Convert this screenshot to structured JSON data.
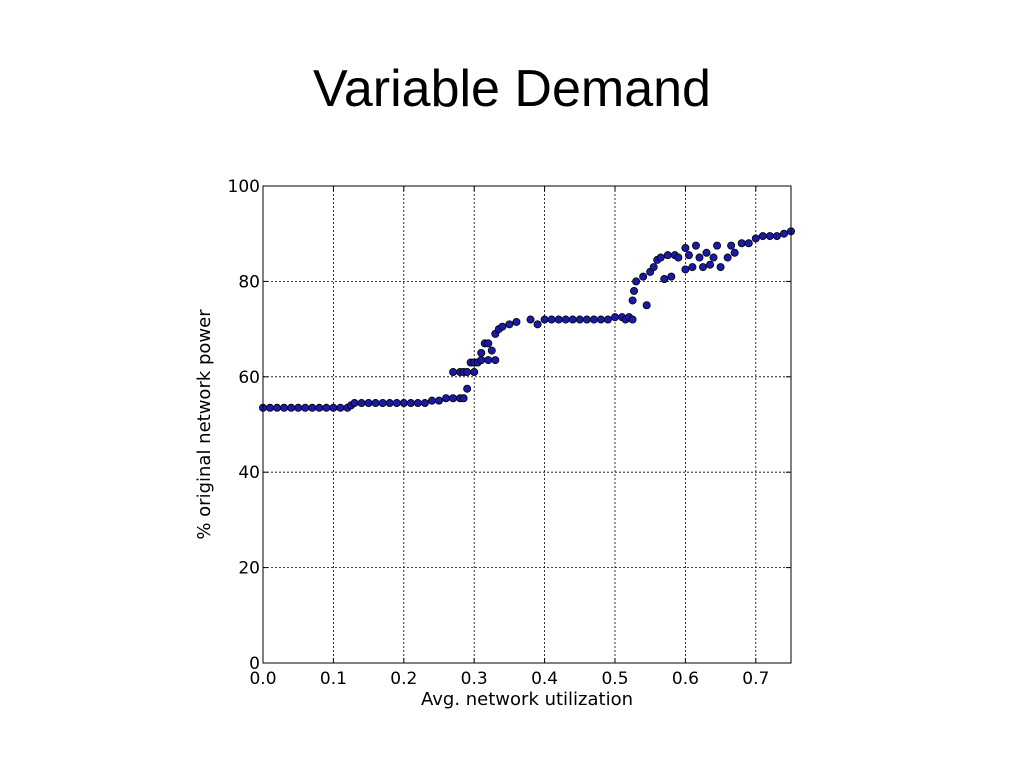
{
  "slide": {
    "title": "Variable Demand"
  },
  "chart_data": {
    "type": "scatter",
    "title": "",
    "xlabel": "Avg. network utilization",
    "ylabel": "% original network power",
    "xlim": [
      0.0,
      0.75
    ],
    "ylim": [
      0,
      100
    ],
    "xticks": [
      0.0,
      0.1,
      0.2,
      0.3,
      0.4,
      0.5,
      0.6,
      0.7
    ],
    "xtick_labels": [
      "0.0",
      "0.1",
      "0.2",
      "0.3",
      "0.4",
      "0.5",
      "0.6",
      "0.7"
    ],
    "yticks": [
      0,
      20,
      40,
      60,
      80,
      100
    ],
    "ytick_labels": [
      "0",
      "20",
      "40",
      "60",
      "80",
      "100"
    ],
    "grid": true,
    "marker_color": "#1a1aa6",
    "marker_edge": "#000000",
    "series": [
      {
        "x": [
          0.0,
          0.01,
          0.02,
          0.03,
          0.04,
          0.05,
          0.06,
          0.07,
          0.08,
          0.09,
          0.1,
          0.11,
          0.12,
          0.125,
          0.13,
          0.14,
          0.15,
          0.16,
          0.17,
          0.18,
          0.19,
          0.2,
          0.21,
          0.22,
          0.23,
          0.24,
          0.25,
          0.26,
          0.27,
          0.28,
          0.285,
          0.27,
          0.28,
          0.285,
          0.29,
          0.29,
          0.295,
          0.3,
          0.3,
          0.305,
          0.31,
          0.31,
          0.315,
          0.32,
          0.32,
          0.325,
          0.33,
          0.33,
          0.335,
          0.34,
          0.35,
          0.36,
          0.38,
          0.39,
          0.4,
          0.41,
          0.42,
          0.43,
          0.44,
          0.45,
          0.46,
          0.47,
          0.48,
          0.49,
          0.5,
          0.51,
          0.515,
          0.52,
          0.525,
          0.525,
          0.527,
          0.53,
          0.54,
          0.545,
          0.55,
          0.555,
          0.56,
          0.565,
          0.57,
          0.575,
          0.58,
          0.585,
          0.59,
          0.6,
          0.6,
          0.605,
          0.61,
          0.615,
          0.62,
          0.625,
          0.63,
          0.635,
          0.64,
          0.645,
          0.65,
          0.66,
          0.665,
          0.67,
          0.68,
          0.69,
          0.7,
          0.71,
          0.72,
          0.73,
          0.74,
          0.75
        ],
        "y": [
          53.5,
          53.5,
          53.5,
          53.5,
          53.5,
          53.5,
          53.5,
          53.5,
          53.5,
          53.5,
          53.5,
          53.5,
          53.5,
          54.0,
          54.5,
          54.5,
          54.5,
          54.5,
          54.5,
          54.5,
          54.5,
          54.5,
          54.5,
          54.5,
          54.5,
          55.0,
          55.0,
          55.5,
          55.5,
          55.5,
          55.5,
          61.0,
          61.0,
          61.0,
          57.5,
          61.0,
          63.0,
          61.0,
          63.0,
          63.0,
          63.5,
          65.0,
          67.0,
          63.5,
          67.0,
          65.5,
          63.5,
          69.0,
          70.0,
          70.5,
          71.0,
          71.5,
          72.0,
          71.0,
          72.0,
          72.0,
          72.0,
          72.0,
          72.0,
          72.0,
          72.0,
          72.0,
          72.0,
          72.0,
          72.5,
          72.5,
          72.0,
          72.5,
          72.0,
          76.0,
          78.0,
          80.0,
          81.0,
          75.0,
          82.0,
          83.0,
          84.5,
          85.0,
          80.5,
          85.5,
          81.0,
          85.5,
          85.0,
          82.5,
          87.0,
          85.5,
          83.0,
          87.5,
          85.0,
          83.0,
          86.0,
          83.5,
          85.0,
          87.5,
          83.0,
          85.0,
          87.5,
          86.0,
          88.0,
          88.0,
          89.0,
          89.5,
          89.5,
          89.5,
          90.0,
          90.5
        ]
      }
    ]
  }
}
